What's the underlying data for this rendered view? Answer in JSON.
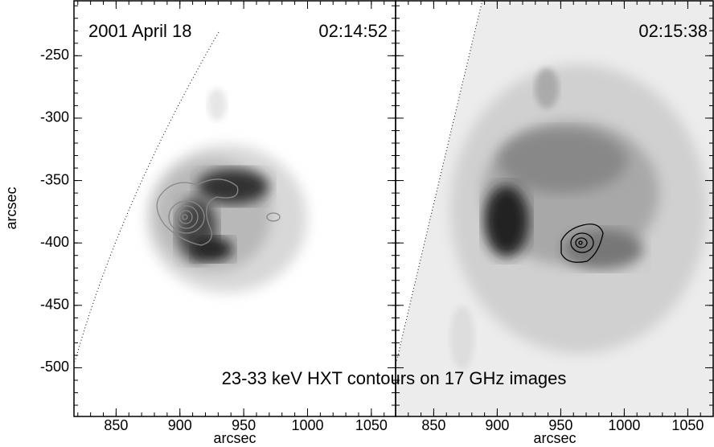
{
  "chart_data": [
    {
      "type": "image",
      "title": "02:14:52",
      "date": "2001 April 18",
      "xlabel": "arcsec",
      "ylabel": "arcsec",
      "xlim": [
        817,
        1069
      ],
      "ylim": [
        -539,
        -206
      ],
      "xticks": [
        850,
        900,
        950,
        1000,
        1050
      ],
      "yticks": [
        -500,
        -450,
        -400,
        -350,
        -300,
        -250
      ]
    },
    {
      "type": "image",
      "title": "02:15:38",
      "xlabel": "arcsec",
      "xlim": [
        820,
        1070
      ],
      "ylim": [
        -539,
        -206
      ],
      "xticks": [
        850,
        900,
        950,
        1000,
        1050
      ],
      "yticks": [
        -500,
        -450,
        -400,
        -350,
        -300,
        -250
      ]
    }
  ],
  "caption": "23-33 keV HXT contours on 17 GHz images"
}
